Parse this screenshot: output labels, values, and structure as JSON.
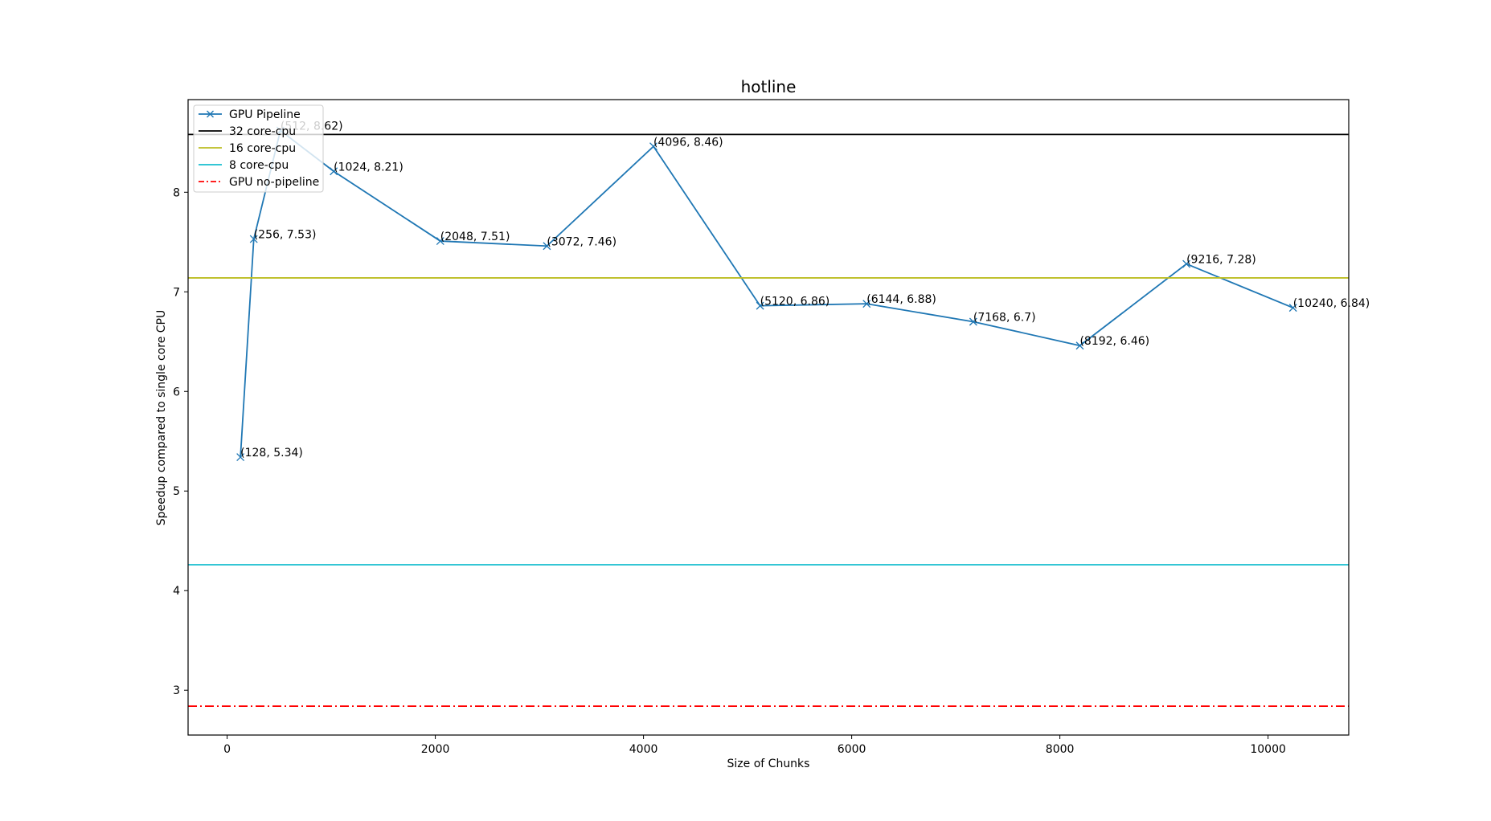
{
  "chart_data": {
    "type": "line",
    "title": "hotline",
    "xlabel": "Size of Chunks",
    "ylabel": "Speedup compared to single core CPU",
    "xlim": [
      -375,
      10775
    ],
    "ylim": [
      2.55,
      8.93
    ],
    "xticks": [
      0,
      2000,
      4000,
      6000,
      8000,
      10000
    ],
    "yticks": [
      3,
      4,
      5,
      6,
      7,
      8
    ],
    "grid": false,
    "legend_position": "top-left",
    "series": [
      {
        "name": "GPU Pipeline",
        "kind": "line-marker",
        "marker": "x",
        "color": "#1f77b4",
        "x": [
          128,
          256,
          512,
          1024,
          2048,
          3072,
          4096,
          5120,
          6144,
          7168,
          8192,
          9216,
          10240
        ],
        "y": [
          5.34,
          7.53,
          8.62,
          8.21,
          7.51,
          7.46,
          8.46,
          6.86,
          6.88,
          6.7,
          6.46,
          7.28,
          6.84
        ],
        "point_labels": [
          "(128, 5.34)",
          "(256, 7.53)",
          "(512, 8.62)",
          "(1024, 8.21)",
          "(2048, 7.51)",
          "(3072, 7.46)",
          "(4096, 8.46)",
          "(5120, 6.86)",
          "(6144, 6.88)",
          "(7168, 6.7)",
          "(8192, 6.46)",
          "(9216, 7.28)",
          "(10240, 6.84)"
        ]
      },
      {
        "name": "32 core-cpu",
        "kind": "hline",
        "color": "#000000",
        "y": 8.58
      },
      {
        "name": "16 core-cpu",
        "kind": "hline",
        "color": "#bcbd22",
        "y": 7.14
      },
      {
        "name": "8 core-cpu",
        "kind": "hline",
        "color": "#17becf",
        "y": 4.26
      },
      {
        "name": "GPU no-pipeline",
        "kind": "hline",
        "color": "#ff0000",
        "dash": "dashdot",
        "y": 2.84
      }
    ]
  }
}
